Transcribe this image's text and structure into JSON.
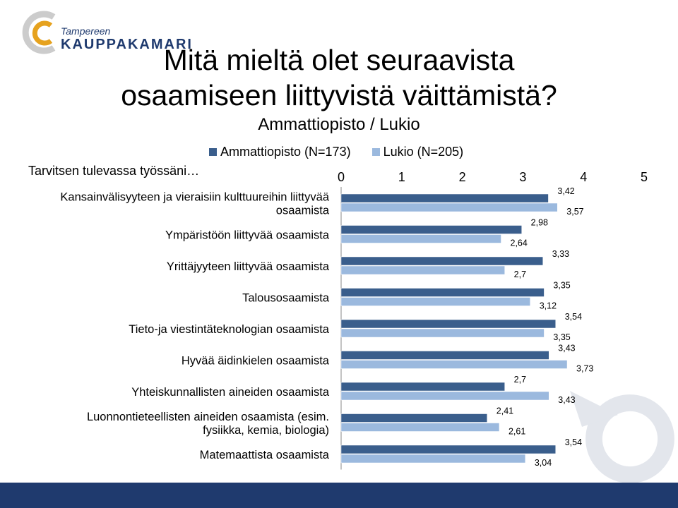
{
  "logo": {
    "line1": "Tampereen",
    "line2": "KAUPPAKAMARI"
  },
  "title": {
    "line1": "Mitä mieltä olet seuraavista",
    "line2": "osaamiseen liittyvistä väittämistä?"
  },
  "subtitle": "Ammattiopisto / Lukio",
  "section_label": "Tarvitsen tulevassa työssäni…",
  "colors": {
    "series1": "#3a5e8c",
    "series2": "#9bb9de",
    "footer": "#1f3a6e"
  },
  "chart_data": {
    "type": "bar",
    "orientation": "horizontal",
    "categories": [
      [
        "Kansainvälisyyteen ja vieraisiin kulttuureihin liittyvää",
        "osaamista"
      ],
      [
        "Ympäristöön liittyvää osaamista"
      ],
      [
        "Yrittäjyyteen liittyvää osaamista"
      ],
      [
        "Talousosaamista"
      ],
      [
        "Tieto-ja viestintäteknologian osaamista"
      ],
      [
        "Hyvää äidinkielen osaamista"
      ],
      [
        "Yhteiskunnallisten aineiden osaamista"
      ],
      [
        "Luonnontieteellisten aineiden osaamista (esim.",
        "fysiikka, kemia, biologia)"
      ],
      [
        "Matemaattista osaamista"
      ]
    ],
    "series": [
      {
        "name": "Ammattiopisto (N=173)",
        "values": [
          3.42,
          2.98,
          3.33,
          3.35,
          3.54,
          3.43,
          2.7,
          2.41,
          3.54
        ],
        "labels": [
          "3,42",
          "2,98",
          "3,33",
          "3,35",
          "3,54",
          "3,43",
          "2,7",
          "2,41",
          "3,54"
        ]
      },
      {
        "name": "Lukio (N=205)",
        "values": [
          3.57,
          2.64,
          2.7,
          3.12,
          3.35,
          3.73,
          3.43,
          2.61,
          3.04
        ],
        "labels": [
          "3,57",
          "2,64",
          "2,7",
          "3,12",
          "3,35",
          "3,73",
          "3,43",
          "2,61",
          "3,04"
        ]
      }
    ],
    "xlim": [
      0,
      5
    ],
    "xticks": [
      "0",
      "1",
      "2",
      "3",
      "4",
      "5"
    ],
    "legend_position": "top"
  }
}
